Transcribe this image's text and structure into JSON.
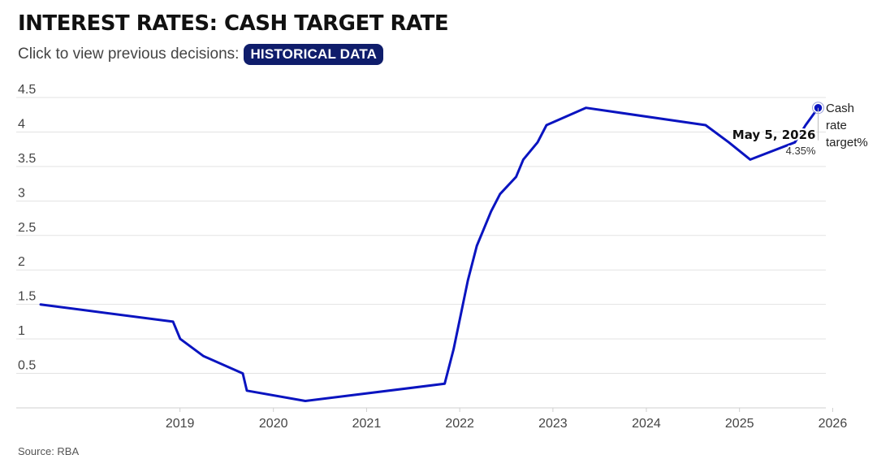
{
  "header": {
    "title": "INTEREST RATES: CASH TARGET RATE",
    "subtitle": "Click to view previous decisions:",
    "button_label": "HISTORICAL DATA"
  },
  "colors": {
    "line": "#0a14c0",
    "grid": "#e3e3e3",
    "button_bg": "#0f1d6b"
  },
  "chart_data": {
    "type": "line",
    "title": "INTEREST RATES: CASH TARGET RATE",
    "xlabel": "",
    "ylabel": "",
    "ylim": [
      0,
      4.5
    ],
    "xlim": [
      "2018-01-01",
      "2026-06-01"
    ],
    "grid": true,
    "yticks": [
      "4.5",
      "4",
      "3.5",
      "3",
      "2.5",
      "2",
      "1.5",
      "1",
      "0.5"
    ],
    "xticks": [
      "2019",
      "2020",
      "2021",
      "2022",
      "2023",
      "2024",
      "2025",
      "2026"
    ],
    "series": [
      {
        "name": "Cash rate target%",
        "x": [
          "2018-01-01",
          "2019-06-04",
          "2019-07-02",
          "2019-10-01",
          "2020-03-03",
          "2020-03-19",
          "2020-11-03",
          "2022-05-03",
          "2022-06-07",
          "2022-07-05",
          "2022-08-02",
          "2022-09-06",
          "2022-10-04",
          "2022-11-01",
          "2022-12-06",
          "2023-02-07",
          "2023-03-07",
          "2023-05-02",
          "2023-06-06",
          "2023-11-07",
          "2025-02-18",
          "2025-05-20",
          "2025-08-12",
          "2026-02-03",
          "2026-03-17",
          "2026-05-05"
        ],
        "values": [
          1.5,
          1.25,
          1.0,
          0.75,
          0.5,
          0.25,
          0.1,
          0.35,
          0.85,
          1.35,
          1.85,
          2.35,
          2.6,
          2.85,
          3.1,
          3.35,
          3.6,
          3.85,
          4.1,
          4.35,
          4.1,
          3.85,
          3.6,
          3.85,
          4.1,
          4.35
        ]
      }
    ],
    "annotation": {
      "date_label": "May 5, 2026",
      "value_label": "4.35%",
      "x": "2026-05-05",
      "y": 4.35
    },
    "legend": {
      "label": "Cash rate target%",
      "placement": "right-end"
    }
  },
  "footer": {
    "source": "Source: RBA"
  }
}
